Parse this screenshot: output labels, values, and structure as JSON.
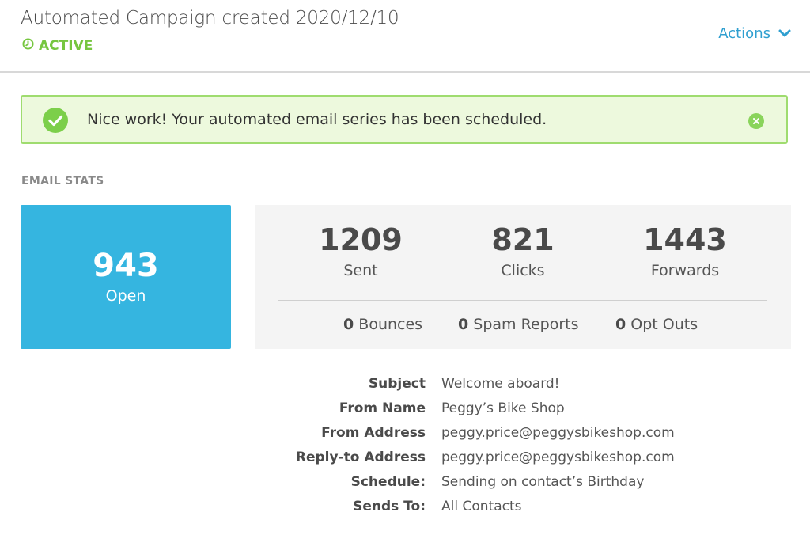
{
  "header": {
    "title": "Automated Campaign created 2020/12/10",
    "status": "ACTIVE",
    "actions_label": "Actions"
  },
  "alert": {
    "message": "Nice work! Your automated email series has been scheduled."
  },
  "stats": {
    "section_label": "EMAIL STATS",
    "open": {
      "value": "943",
      "label": "Open"
    },
    "sent": {
      "value": "1209",
      "label": "Sent"
    },
    "clicks": {
      "value": "821",
      "label": "Clicks"
    },
    "forwards": {
      "value": "1443",
      "label": "Forwards"
    },
    "bounces": {
      "value": "0",
      "label": "Bounces"
    },
    "spam": {
      "value": "0",
      "label": "Spam Reports"
    },
    "optouts": {
      "value": "0",
      "label": "Opt Outs"
    }
  },
  "details": {
    "subject": {
      "label": "Subject",
      "value": "Welcome aboard!"
    },
    "from_name": {
      "label": "From Name",
      "value": "Peggy’s Bike Shop"
    },
    "from_address": {
      "label": "From Address",
      "value": "peggy.price@peggysbikeshop.com"
    },
    "reply_to": {
      "label": "Reply-to Address",
      "value": "peggy.price@peggysbikeshop.com"
    },
    "schedule": {
      "label": "Schedule:",
      "value": "Sending on contact’s Birthday"
    },
    "sends_to": {
      "label": "Sends To:",
      "value": "All Contacts"
    }
  },
  "colors": {
    "active_green": "#76c63f",
    "link_blue": "#2f9fd0",
    "open_card": "#35b5e0",
    "alert_bg": "#edf9dd",
    "alert_border": "#9fdc6f"
  },
  "icons": {
    "status": "clock-icon",
    "actions": "chevron-down-icon",
    "alert_check": "check-circle-icon",
    "alert_close": "close-icon"
  }
}
